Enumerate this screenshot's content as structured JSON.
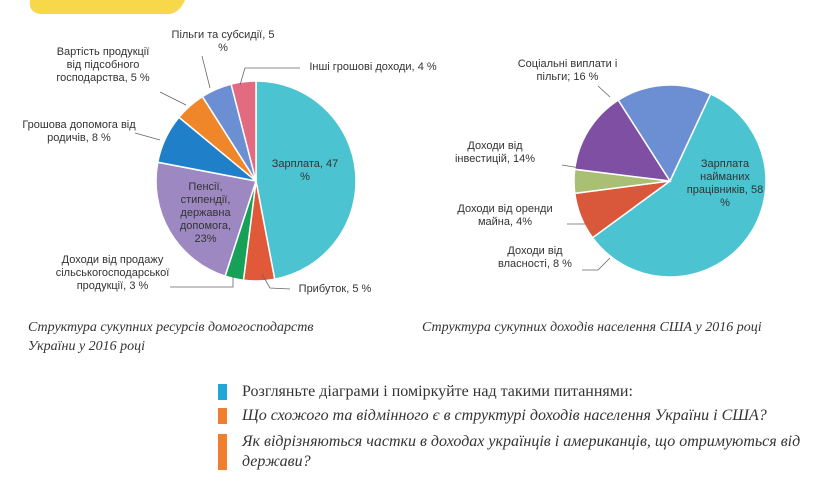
{
  "chart_data": [
    {
      "type": "pie",
      "caption": "Структура сукупних ресурсів домогосподарств України у 2016 році",
      "categories": [
        "Зарплата,",
        "Прибуток,",
        "Доходи від продажу сільськогосподарської продукції,",
        "Пенсії, стипендії, державна допомога,",
        "Грошова допомога від родичів,",
        "Вартість продукції від підсобного господарства,",
        "Пільги та субсидії,",
        "Інші грошові доходи,"
      ],
      "values": [
        47,
        5,
        3,
        23,
        8,
        5,
        5,
        4
      ],
      "value_labels": [
        "47 %",
        "5 %",
        "3 %",
        "23%",
        "8 %",
        "5 %",
        "5 %",
        "4 %"
      ],
      "colors": [
        "#4cc3d1",
        "#e05a3a",
        "#17a058",
        "#9d88c2",
        "#1f80c9",
        "#f0862a",
        "#6b8fd2",
        "#e26b82"
      ]
    },
    {
      "type": "pie",
      "caption": "Структура сукупних доходів населення США у 2016 році",
      "categories": [
        "Зарплата найманих працівників,",
        "Доходи від власності,",
        "Доходи від оренди майна,",
        "Доходи від інвестицій,",
        "Соціальні виплати і пільги;"
      ],
      "values": [
        58,
        8,
        4,
        14,
        16
      ],
      "value_labels": [
        "58 %",
        "8 %",
        "4%",
        "14%",
        "16 %"
      ],
      "colors": [
        "#4cc3d1",
        "#d9573b",
        "#a9bf74",
        "#7e4fa3",
        "#6b8fd2"
      ]
    }
  ],
  "questions": [
    {
      "text": "Розгляньте діаграми і поміркуйте над такими питаннями:",
      "color": "#22a6d8"
    },
    {
      "text": "Що схожого та відмінного є в структурі доходів населення України і США?",
      "color": "#ef7f2e"
    },
    {
      "text": "Як відрізняються частки в доходах українців і американців, що отримуються від держави?",
      "color": "#ef7f2e"
    }
  ]
}
